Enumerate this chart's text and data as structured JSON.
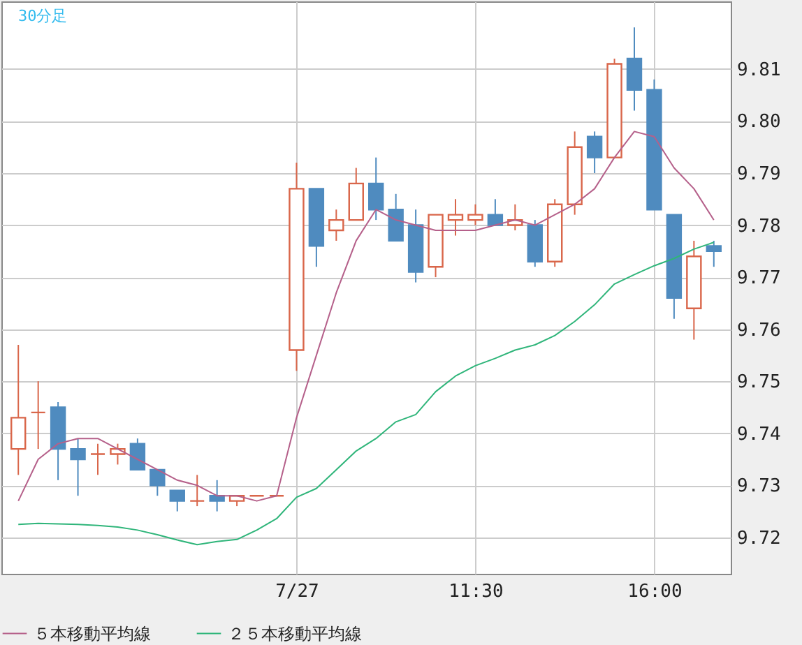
{
  "chart_data": {
    "type": "candlestick",
    "title": "30分足",
    "categories": [
      null,
      null,
      null,
      null,
      null,
      null,
      null,
      null,
      null,
      null,
      null,
      null,
      null,
      null,
      "7/27",
      null,
      null,
      null,
      null,
      null,
      null,
      null,
      null,
      "11:30",
      null,
      null,
      null,
      null,
      null,
      null,
      null,
      null,
      "16:00",
      null,
      null,
      null
    ],
    "ohlc": [
      [
        9.737,
        9.757,
        9.732,
        9.743
      ],
      [
        9.744,
        9.75,
        9.737,
        9.744
      ],
      [
        9.745,
        9.746,
        9.731,
        9.737
      ],
      [
        9.737,
        9.739,
        9.728,
        9.735
      ],
      [
        9.736,
        9.738,
        9.732,
        9.736
      ],
      [
        9.736,
        9.738,
        9.734,
        9.737
      ],
      [
        9.738,
        9.739,
        9.733,
        9.733
      ],
      [
        9.733,
        9.733,
        9.728,
        9.73
      ],
      [
        9.729,
        9.729,
        9.725,
        9.727
      ],
      [
        9.727,
        9.732,
        9.726,
        9.727
      ],
      [
        9.728,
        9.731,
        9.725,
        9.727
      ],
      [
        9.727,
        9.728,
        9.726,
        9.728
      ],
      [
        9.728,
        9.728,
        9.728,
        9.728
      ],
      [
        9.728,
        9.728,
        9.728,
        9.728
      ],
      [
        9.756,
        9.792,
        9.752,
        9.787
      ],
      [
        9.787,
        9.787,
        9.772,
        9.776
      ],
      [
        9.779,
        9.783,
        9.777,
        9.781
      ],
      [
        9.781,
        9.791,
        9.781,
        9.788
      ],
      [
        9.788,
        9.793,
        9.781,
        9.783
      ],
      [
        9.783,
        9.786,
        9.777,
        9.777
      ],
      [
        9.78,
        9.783,
        9.769,
        9.771
      ],
      [
        9.772,
        9.782,
        9.77,
        9.782
      ],
      [
        9.781,
        9.785,
        9.778,
        9.782
      ],
      [
        9.781,
        9.784,
        9.78,
        9.782
      ],
      [
        9.782,
        9.785,
        9.78,
        9.78
      ],
      [
        9.78,
        9.784,
        9.779,
        9.781
      ],
      [
        9.78,
        9.781,
        9.772,
        9.773
      ],
      [
        9.773,
        9.785,
        9.772,
        9.784
      ],
      [
        9.784,
        9.798,
        9.782,
        9.795
      ],
      [
        9.797,
        9.798,
        9.79,
        9.793
      ],
      [
        9.793,
        9.812,
        9.793,
        9.811
      ],
      [
        9.812,
        9.818,
        9.802,
        9.806
      ],
      [
        9.806,
        9.808,
        9.783,
        9.783
      ],
      [
        9.782,
        9.782,
        9.762,
        9.766
      ],
      [
        9.764,
        9.777,
        9.758,
        9.774
      ],
      [
        9.776,
        9.777,
        9.772,
        9.775
      ]
    ],
    "colors": [
      "#d9664a",
      "#d9664a",
      "#4f8bbf",
      "#4f8bbf",
      "#d9664a",
      "#d9664a",
      "#4f8bbf",
      "#4f8bbf",
      "#4f8bbf",
      "#d9664a",
      "#4f8bbf",
      "#d9664a",
      "#d9664a",
      "#d9664a",
      "#d9664a",
      "#4f8bbf",
      "#d9664a",
      "#d9664a",
      "#4f8bbf",
      "#4f8bbf",
      "#4f8bbf",
      "#d9664a",
      "#d9664a",
      "#d9664a",
      "#4f8bbf",
      "#d9664a",
      "#4f8bbf",
      "#d9664a",
      "#d9664a",
      "#4f8bbf",
      "#d9664a",
      "#4f8bbf",
      "#4f8bbf",
      "#4f8bbf",
      "#d9664a",
      "#4f8bbf"
    ],
    "series": [
      {
        "name": "５本移動平均線",
        "type": "line",
        "color": "#b5608a",
        "values": [
          9.727,
          9.735,
          9.738,
          9.739,
          9.739,
          9.737,
          9.735,
          9.733,
          9.731,
          9.73,
          9.728,
          9.728,
          9.727,
          9.728,
          9.743,
          9.755,
          9.767,
          9.777,
          9.783,
          9.781,
          9.78,
          9.779,
          9.779,
          9.779,
          9.78,
          9.781,
          9.78,
          9.782,
          9.784,
          9.787,
          9.793,
          9.798,
          9.797,
          9.791,
          9.787,
          9.781
        ]
      },
      {
        "name": "２５本移動平均線",
        "type": "line",
        "color": "#2fb57a",
        "values": [
          9.7225,
          9.7227,
          9.7226,
          9.7225,
          9.7223,
          9.722,
          9.7214,
          9.7205,
          9.7195,
          9.7186,
          9.7192,
          9.7196,
          9.7214,
          9.7236,
          9.7277,
          9.7294,
          9.733,
          9.7366,
          9.739,
          9.7422,
          9.7436,
          9.748,
          9.751,
          9.753,
          9.7544,
          9.756,
          9.757,
          9.7588,
          9.7615,
          9.7647,
          9.7687,
          9.7705,
          9.7722,
          9.7736,
          9.7754,
          9.7767
        ]
      }
    ],
    "ylim": [
      9.713,
      9.823
    ],
    "yticks": [
      9.72,
      9.73,
      9.74,
      9.75,
      9.76,
      9.77,
      9.78,
      9.79,
      {
        "value": 9.8,
        "label": "9.80"
      },
      9.81
    ],
    "grid": true,
    "legend": "bottom"
  }
}
